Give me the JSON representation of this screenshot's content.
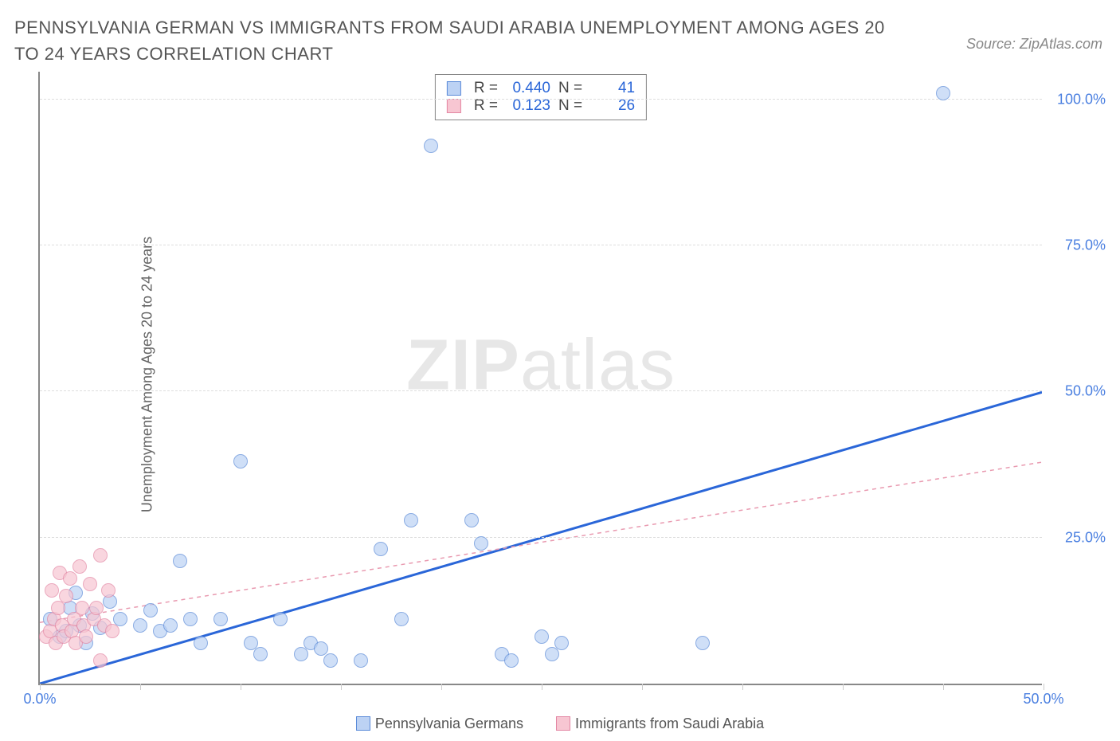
{
  "title": "PENNSYLVANIA GERMAN VS IMMIGRANTS FROM SAUDI ARABIA UNEMPLOYMENT AMONG AGES 20 TO 24 YEARS CORRELATION CHART",
  "source": "Source: ZipAtlas.com",
  "watermark_bold": "ZIP",
  "watermark_light": "atlas",
  "y_axis_label": "Unemployment Among Ages 20 to 24 years",
  "chart": {
    "type": "scatter",
    "xlim": [
      0,
      50
    ],
    "ylim": [
      0,
      105
    ],
    "x_ticks": [
      0,
      5,
      10,
      15,
      20,
      25,
      30,
      35,
      40,
      45,
      50
    ],
    "x_tick_labels": {
      "0": "0.0%",
      "50": "50.0%"
    },
    "y_ticks": [
      25,
      50,
      75,
      100
    ],
    "y_tick_labels": {
      "25": "25.0%",
      "50": "50.0%",
      "75": "75.0%",
      "100": "100.0%"
    },
    "grid_color": "#dddddd",
    "axis_color": "#888888",
    "background_color": "#ffffff",
    "tick_label_color": "#4a7fe0",
    "tick_label_fontsize": 18,
    "axis_label_fontsize": 18,
    "marker_radius": 9,
    "marker_border_width": 1,
    "series": [
      {
        "name": "Pennsylvania Germans",
        "fill": "#bcd2f4",
        "stroke": "#5a8ad8",
        "fill_opacity": 0.7,
        "trend": {
          "slope": 1.0,
          "intercept": 0.0,
          "color": "#2a66d8",
          "width": 3,
          "dash": "none"
        },
        "stats": {
          "R": "0.440",
          "N": "41"
        },
        "points": [
          [
            0.5,
            11
          ],
          [
            1,
            8
          ],
          [
            1.3,
            9
          ],
          [
            1.5,
            13
          ],
          [
            1.8,
            15.5
          ],
          [
            2,
            10
          ],
          [
            2.3,
            7
          ],
          [
            2.6,
            12
          ],
          [
            3,
            9.5
          ],
          [
            3.5,
            14
          ],
          [
            4,
            11
          ],
          [
            5,
            10
          ],
          [
            5.5,
            12.5
          ],
          [
            6,
            9
          ],
          [
            6.5,
            10
          ],
          [
            7,
            21
          ],
          [
            7.5,
            11
          ],
          [
            8,
            7
          ],
          [
            9,
            11
          ],
          [
            10,
            38
          ],
          [
            10.5,
            7
          ],
          [
            11,
            5
          ],
          [
            12,
            11
          ],
          [
            13,
            5
          ],
          [
            13.5,
            7
          ],
          [
            14,
            6
          ],
          [
            14.5,
            4
          ],
          [
            16,
            4
          ],
          [
            17,
            23
          ],
          [
            18,
            11
          ],
          [
            18.5,
            28
          ],
          [
            19.5,
            92
          ],
          [
            21.5,
            28
          ],
          [
            22,
            24
          ],
          [
            23,
            5
          ],
          [
            23.5,
            4
          ],
          [
            25,
            8
          ],
          [
            25.5,
            5
          ],
          [
            26,
            7
          ],
          [
            33,
            7
          ],
          [
            45,
            101
          ]
        ]
      },
      {
        "name": "Immigrants from Saudi Arabia",
        "fill": "#f7c6d2",
        "stroke": "#e386a3",
        "fill_opacity": 0.7,
        "trend": {
          "slope": 0.55,
          "intercept": 10.5,
          "color": "#e99ab0",
          "width": 1.5,
          "dash": "5,5"
        },
        "stats": {
          "R": "0.123",
          "N": "26"
        },
        "points": [
          [
            0.3,
            8
          ],
          [
            0.5,
            9
          ],
          [
            0.6,
            16
          ],
          [
            0.7,
            11
          ],
          [
            0.8,
            7
          ],
          [
            0.9,
            13
          ],
          [
            1.0,
            19
          ],
          [
            1.1,
            10
          ],
          [
            1.2,
            8
          ],
          [
            1.3,
            15
          ],
          [
            1.5,
            18
          ],
          [
            1.6,
            9
          ],
          [
            1.7,
            11
          ],
          [
            1.8,
            7
          ],
          [
            2.0,
            20
          ],
          [
            2.1,
            13
          ],
          [
            2.2,
            10
          ],
          [
            2.3,
            8
          ],
          [
            2.5,
            17
          ],
          [
            2.7,
            11
          ],
          [
            2.8,
            13
          ],
          [
            3.0,
            22
          ],
          [
            3.2,
            10
          ],
          [
            3.4,
            16
          ],
          [
            3.6,
            9
          ],
          [
            3.0,
            4
          ]
        ]
      }
    ]
  },
  "stats_labels": {
    "R": "R =",
    "N": "N ="
  },
  "legend": {
    "series1": "Pennsylvania Germans",
    "series2": "Immigrants from Saudi Arabia"
  }
}
